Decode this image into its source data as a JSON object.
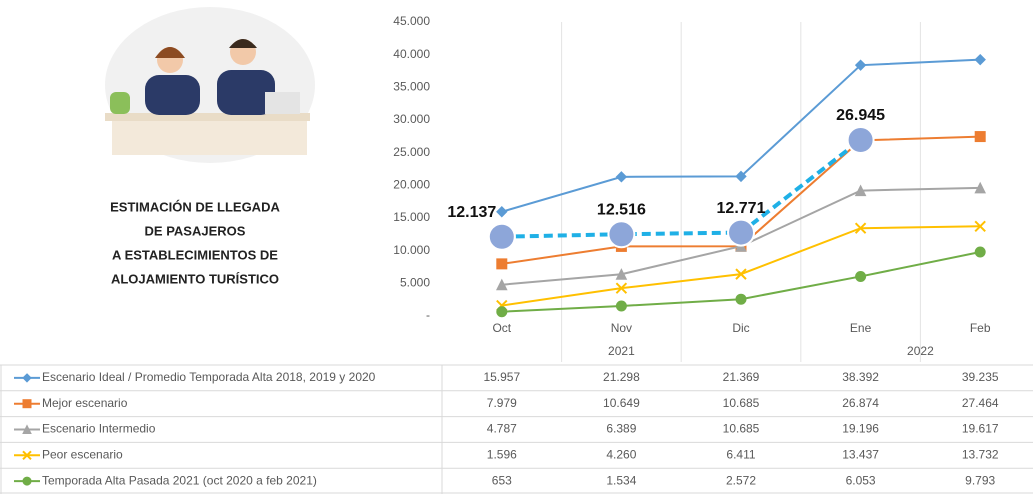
{
  "chart_data": {
    "type": "line",
    "title": [
      "ESTIMACIÓN DE LLEGADA",
      "DE PASAJEROS",
      "A ESTABLECIMIENTOS  DE",
      "ALOJAMIENTO TURÍSTICO"
    ],
    "categories": [
      "Oct",
      "Nov",
      "Dic",
      "Ene",
      "Feb"
    ],
    "year_groups": [
      {
        "label": "2021",
        "span": 3
      },
      {
        "label": "2022",
        "span": 2
      }
    ],
    "ylim": [
      0,
      45000
    ],
    "yticks": [
      {
        "value": 0,
        "label": "-"
      },
      {
        "value": 5000,
        "label": "5.000"
      },
      {
        "value": 10000,
        "label": "10.000"
      },
      {
        "value": 15000,
        "label": "15.000"
      },
      {
        "value": 20000,
        "label": "20.000"
      },
      {
        "value": 25000,
        "label": "25.000"
      },
      {
        "value": 30000,
        "label": "30.000"
      },
      {
        "value": 35000,
        "label": "35.000"
      },
      {
        "value": 40000,
        "label": "40.000"
      },
      {
        "value": 45000,
        "label": "45.000"
      }
    ],
    "series": [
      {
        "name": "Escenario Ideal / Promedio Temporada Alta 2018, 2019 y 2020",
        "color": "#5b9bd5",
        "marker": "diamond",
        "values": [
          15957,
          21298,
          21369,
          38392,
          39235
        ],
        "value_labels": [
          "15.957",
          "21.298",
          "21.369",
          "38.392",
          "39.235"
        ]
      },
      {
        "name": "Mejor escenario",
        "color": "#ed7d31",
        "marker": "square",
        "values": [
          7979,
          10649,
          10685,
          26874,
          27464
        ],
        "value_labels": [
          "7.979",
          "10.649",
          "10.685",
          "26.874",
          "27.464"
        ]
      },
      {
        "name": "Escenario Intermedio",
        "color": "#a5a5a5",
        "marker": "triangle",
        "values": [
          4787,
          6389,
          10685,
          19196,
          19617
        ],
        "value_labels": [
          "4.787",
          "6.389",
          "10.685",
          "19.196",
          "19.617"
        ]
      },
      {
        "name": "Peor escenario",
        "color": "#ffc000",
        "marker": "x",
        "values": [
          1596,
          4260,
          6411,
          13437,
          13732
        ],
        "value_labels": [
          "1.596",
          "4.260",
          "6.411",
          "13.437",
          "13.732"
        ]
      },
      {
        "name": "Temporada Alta Pasada 2021 (oct 2020 a feb 2021)",
        "color": "#70ad47",
        "marker": "circle",
        "values": [
          653,
          1534,
          2572,
          6053,
          9793
        ],
        "value_labels": [
          "653",
          "1.534",
          "2.572",
          "6.053",
          "9.793"
        ]
      }
    ],
    "actual": {
      "color": "#1fb0e6",
      "values": [
        12137,
        12516,
        12771,
        26945,
        null
      ],
      "value_labels": [
        "12.137",
        "12.516",
        "12.771",
        "26.945",
        null
      ]
    }
  }
}
